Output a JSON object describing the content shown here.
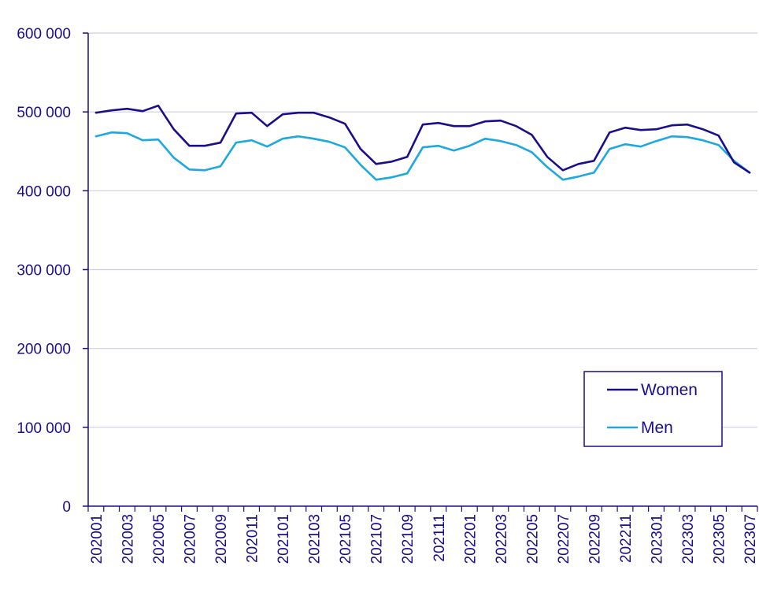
{
  "chart_data": {
    "type": "line",
    "x": [
      "202001",
      "202002",
      "202003",
      "202004",
      "202005",
      "202006",
      "202007",
      "202008",
      "202009",
      "202010",
      "202011",
      "202012",
      "202101",
      "202102",
      "202103",
      "202104",
      "202105",
      "202106",
      "202107",
      "202108",
      "202109",
      "202110",
      "202111",
      "202112",
      "202201",
      "202202",
      "202203",
      "202204",
      "202205",
      "202206",
      "202207",
      "202208",
      "202209",
      "202210",
      "202211",
      "202212",
      "202301",
      "202302",
      "202303",
      "202304",
      "202305",
      "202306",
      "202307"
    ],
    "x_tick_labels": [
      "202001",
      "202003",
      "202005",
      "202007",
      "202009",
      "202011",
      "202101",
      "202103",
      "202105",
      "202107",
      "202109",
      "202111",
      "202201",
      "202203",
      "202205",
      "202207",
      "202209",
      "202211",
      "202301",
      "202303",
      "202305",
      "202307"
    ],
    "y_tick_labels": [
      "0",
      "100 000",
      "200 000",
      "300 000",
      "400 000",
      "500 000",
      "600 000"
    ],
    "ylim": [
      0,
      600000
    ],
    "grid": "horizontal",
    "legend_position": "bottom-right",
    "series": [
      {
        "name": "Women",
        "color": "#1a0e8c",
        "values": [
          499000,
          502000,
          504000,
          501000,
          508000,
          478000,
          457000,
          457000,
          461000,
          498000,
          499000,
          482000,
          497000,
          499000,
          499000,
          493000,
          485000,
          453000,
          434000,
          437000,
          443000,
          484000,
          486000,
          482000,
          482000,
          488000,
          489000,
          482000,
          471000,
          443000,
          426000,
          434000,
          438000,
          474000,
          480000,
          477000,
          478000,
          483000,
          484000,
          478000,
          470000,
          436000,
          423000
        ]
      },
      {
        "name": "Men",
        "color": "#1ea8e0",
        "values": [
          469000,
          474000,
          473000,
          464000,
          465000,
          442000,
          427000,
          426000,
          431000,
          461000,
          464000,
          456000,
          466000,
          469000,
          466000,
          462000,
          455000,
          433000,
          414000,
          417000,
          422000,
          455000,
          457000,
          451000,
          457000,
          466000,
          463000,
          458000,
          449000,
          430000,
          414000,
          418000,
          423000,
          453000,
          459000,
          456000,
          463000,
          469000,
          468000,
          464000,
          458000,
          438000,
          423000
        ]
      }
    ]
  }
}
